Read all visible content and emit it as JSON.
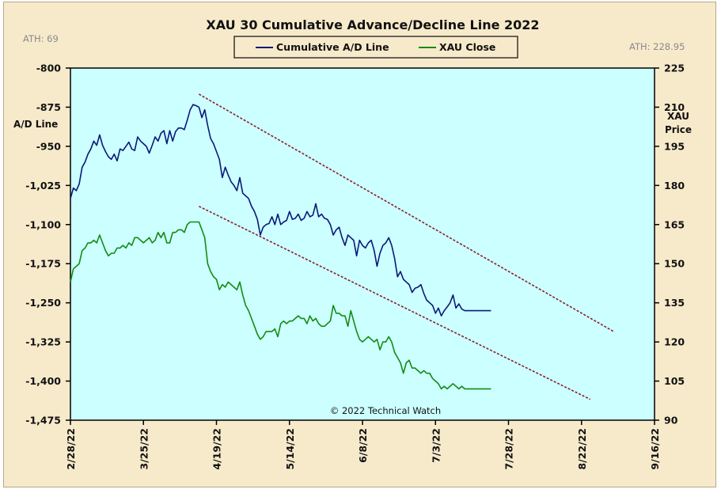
{
  "chart_data": {
    "type": "line",
    "title": "XAU 30 Cumulative Advance/Decline Line 2022",
    "left_axis_label": "A/D Line",
    "right_axis_label": "XAU Price",
    "ath_left": "ATH: 69",
    "ath_right": "ATH: 228.95",
    "copyright": "© 2022 Technical Watch",
    "legend_position": "top-center",
    "background_color": "#ccffff",
    "frame_color": "#f7eacb",
    "x_dates": [
      "2/28/22",
      "3/25/22",
      "4/19/22",
      "5/14/22",
      "6/8/22",
      "7/3/22",
      "7/28/22",
      "8/22/22",
      "9/16/22"
    ],
    "x_range_days": [
      0,
      200
    ],
    "left_ylim": [
      -1475,
      -800
    ],
    "left_ticks": [
      "-800",
      "-875",
      "-950",
      "-1,025",
      "-1,100",
      "-1,175",
      "-1,250",
      "-1,325",
      "-1,400",
      "-1,475"
    ],
    "right_ylim": [
      90,
      225
    ],
    "right_ticks": [
      "225",
      "210",
      "195",
      "180",
      "165",
      "150",
      "135",
      "120",
      "105",
      "90"
    ],
    "series": [
      {
        "name": "Cumulative A/D Line",
        "color": "#0a1a78",
        "axis": "left",
        "x": [
          0,
          1,
          2,
          3,
          4,
          5,
          6,
          7,
          8,
          9,
          10,
          11,
          12,
          13,
          14,
          15,
          16,
          17,
          18,
          19,
          20,
          21,
          22,
          23,
          24,
          25,
          26,
          27,
          28,
          29,
          30,
          31,
          32,
          33,
          34,
          35,
          36,
          37,
          38,
          39,
          40,
          41,
          42,
          43,
          44,
          45,
          46,
          47,
          48,
          49,
          50,
          51,
          52,
          53,
          54,
          55,
          56,
          57,
          58,
          59,
          60,
          61,
          62,
          63,
          64,
          65,
          66,
          67,
          68,
          69,
          70,
          71,
          72,
          73,
          74,
          75,
          76,
          77,
          78,
          79,
          80,
          81,
          82,
          83,
          84,
          85,
          86,
          87,
          88,
          89,
          90,
          91,
          92,
          93,
          94,
          95,
          96,
          97,
          98,
          99,
          100,
          101,
          102,
          103,
          104,
          105,
          106,
          107,
          108,
          109,
          110,
          111,
          112,
          113,
          114,
          115,
          116,
          117,
          118,
          119,
          120,
          121,
          122,
          123,
          124,
          125,
          126,
          127,
          128,
          129,
          130,
          131,
          132,
          133,
          134,
          135,
          136,
          137,
          138,
          139,
          140,
          141,
          142,
          143,
          144
        ],
        "values": [
          -1050,
          -1030,
          -1035,
          -1022,
          -990,
          -980,
          -965,
          -955,
          -940,
          -948,
          -928,
          -948,
          -960,
          -970,
          -975,
          -965,
          -978,
          -955,
          -958,
          -950,
          -942,
          -955,
          -958,
          -932,
          -940,
          -945,
          -950,
          -963,
          -948,
          -932,
          -940,
          -925,
          -920,
          -945,
          -920,
          -940,
          -922,
          -915,
          -915,
          -918,
          -900,
          -880,
          -870,
          -872,
          -875,
          -895,
          -880,
          -910,
          -935,
          -945,
          -960,
          -975,
          -1010,
          -990,
          -1005,
          -1018,
          -1025,
          -1035,
          -1010,
          -1040,
          -1045,
          -1050,
          -1065,
          -1075,
          -1090,
          -1120,
          -1105,
          -1100,
          -1098,
          -1085,
          -1100,
          -1080,
          -1100,
          -1095,
          -1092,
          -1075,
          -1090,
          -1088,
          -1080,
          -1092,
          -1088,
          -1075,
          -1085,
          -1082,
          -1060,
          -1085,
          -1080,
          -1088,
          -1090,
          -1100,
          -1120,
          -1110,
          -1105,
          -1125,
          -1140,
          -1120,
          -1125,
          -1130,
          -1160,
          -1130,
          -1140,
          -1145,
          -1135,
          -1130,
          -1150,
          -1180,
          -1155,
          -1140,
          -1135,
          -1125,
          -1140,
          -1165,
          -1200,
          -1190,
          -1205,
          -1210,
          -1215,
          -1230,
          -1222,
          -1220,
          -1215,
          -1232,
          -1245,
          -1250,
          -1255,
          -1270,
          -1260,
          -1275,
          -1265,
          -1258,
          -1250,
          -1235,
          -1260,
          -1252,
          -1262,
          -1265,
          -1265,
          -1265,
          -1265,
          -1265,
          -1265,
          -1265,
          -1265,
          -1265,
          -1265
        ]
      },
      {
        "name": "XAU Close",
        "color": "#138c13",
        "axis": "right",
        "x": [
          0,
          1,
          2,
          3,
          4,
          5,
          6,
          7,
          8,
          9,
          10,
          11,
          12,
          13,
          14,
          15,
          16,
          17,
          18,
          19,
          20,
          21,
          22,
          23,
          24,
          25,
          26,
          27,
          28,
          29,
          30,
          31,
          32,
          33,
          34,
          35,
          36,
          37,
          38,
          39,
          40,
          41,
          42,
          43,
          44,
          45,
          46,
          47,
          48,
          49,
          50,
          51,
          52,
          53,
          54,
          55,
          56,
          57,
          58,
          59,
          60,
          61,
          62,
          63,
          64,
          65,
          66,
          67,
          68,
          69,
          70,
          71,
          72,
          73,
          74,
          75,
          76,
          77,
          78,
          79,
          80,
          81,
          82,
          83,
          84,
          85,
          86,
          87,
          88,
          89,
          90,
          91,
          92,
          93,
          94,
          95,
          96,
          97,
          98,
          99,
          100,
          101,
          102,
          103,
          104,
          105,
          106,
          107,
          108,
          109,
          110,
          111,
          112,
          113,
          114,
          115,
          116,
          117,
          118,
          119,
          120,
          121,
          122,
          123,
          124,
          125,
          126,
          127,
          128,
          129,
          130,
          131,
          132,
          133,
          134,
          135,
          136,
          137,
          138,
          139,
          140,
          141,
          142,
          143,
          144
        ],
        "values": [
          143,
          148,
          149,
          150,
          155,
          156,
          158,
          158,
          159,
          158,
          161,
          158,
          155,
          153,
          154,
          154,
          156,
          156,
          157,
          156,
          158,
          157,
          160,
          160,
          159,
          158,
          159,
          160,
          158,
          159,
          162,
          160,
          162,
          158,
          158,
          162,
          162,
          163,
          163,
          162,
          165,
          166,
          166,
          166,
          166,
          163,
          160,
          150,
          147,
          145,
          144,
          140,
          142,
          141,
          143,
          142,
          141,
          140,
          143,
          138,
          134,
          132,
          129,
          126,
          123,
          121,
          122,
          124,
          124,
          124,
          125,
          122,
          127,
          128,
          127,
          128,
          128,
          129,
          130,
          129,
          129,
          127,
          130,
          128,
          129,
          127,
          126,
          126,
          127,
          128,
          134,
          131,
          131,
          130,
          130,
          126,
          132,
          128,
          124,
          121,
          120,
          121,
          122,
          121,
          120,
          121,
          117,
          120,
          120,
          122,
          120,
          116,
          114,
          112,
          108,
          112,
          113,
          110,
          110,
          109,
          108,
          109,
          108,
          108,
          106,
          105,
          104,
          102,
          103,
          102,
          103,
          104,
          103,
          102,
          103,
          102,
          102,
          102,
          102,
          102,
          102,
          102,
          102,
          102,
          102
        ]
      }
    ],
    "trendlines": [
      {
        "axis": "left",
        "color": "#8b1c2c",
        "from": [
          44,
          -850
        ],
        "to": [
          186,
          -1305
        ]
      },
      {
        "axis": "left",
        "color": "#8b1c2c",
        "from": [
          44,
          -1065
        ],
        "to": [
          178,
          -1435
        ]
      }
    ]
  }
}
